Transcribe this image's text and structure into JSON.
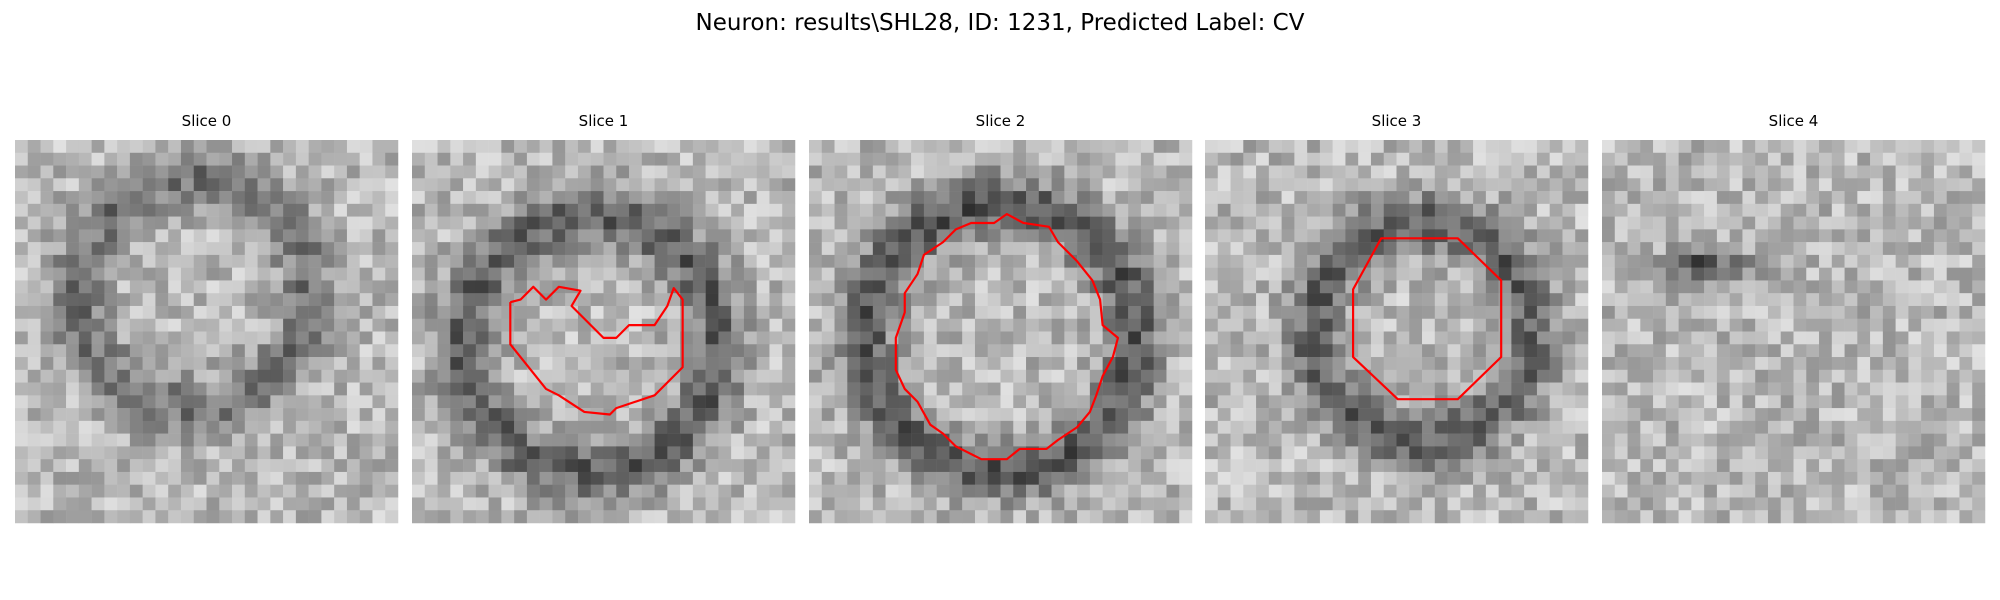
{
  "title": "Neuron: results\\SHL28, ID: 1231, Predicted Label: CV",
  "panels": [
    {
      "title": "Slice 0"
    },
    {
      "title": "Slice 1"
    },
    {
      "title": "Slice 2"
    },
    {
      "title": "Slice 3"
    },
    {
      "title": "Slice 4"
    }
  ]
}
